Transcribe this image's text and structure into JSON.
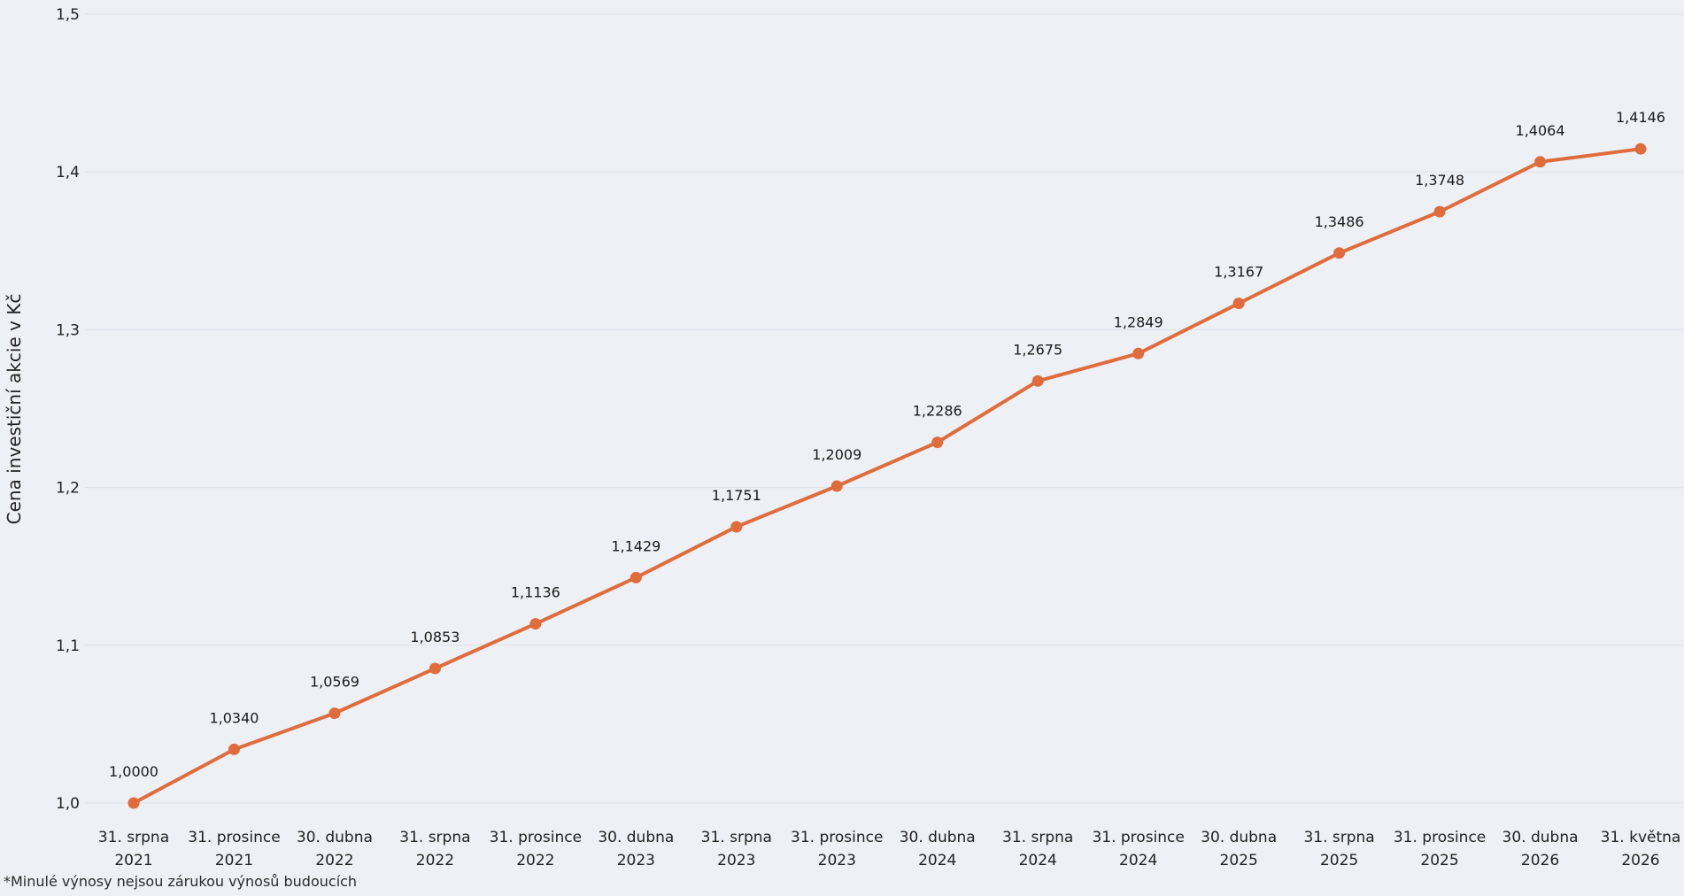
{
  "chart_data": {
    "type": "line",
    "title": "",
    "xlabel": "",
    "ylabel": "Cena investiční akcie v Kč",
    "ylim": [
      1.0,
      1.5
    ],
    "yticks": [
      "1,0",
      "1,1",
      "1,2",
      "1,3",
      "1,4",
      "1,5"
    ],
    "grid": true,
    "line_color": "#e06c3c",
    "grid_color": "#dfe3ea",
    "categories": [
      [
        "31. srpna",
        "2021"
      ],
      [
        "31. prosince",
        "2021"
      ],
      [
        "30. dubna",
        "2022"
      ],
      [
        "31. srpna",
        "2022"
      ],
      [
        "31. prosince",
        "2022"
      ],
      [
        "30. dubna",
        "2023"
      ],
      [
        "31. srpna",
        "2023"
      ],
      [
        "31. prosince",
        "2023"
      ],
      [
        "30. dubna",
        "2024"
      ],
      [
        "31. srpna",
        "2024"
      ],
      [
        "31. prosince",
        "2024"
      ],
      [
        "30. dubna",
        "2025"
      ],
      [
        "31. srpna",
        "2025"
      ],
      [
        "31. prosince",
        "2025"
      ],
      [
        "30. dubna",
        "2026"
      ],
      [
        "31. května",
        "2026"
      ]
    ],
    "values": [
      1.0,
      1.034,
      1.0569,
      1.0853,
      1.1136,
      1.1429,
      1.1751,
      1.2009,
      1.2286,
      1.2675,
      1.2849,
      1.3167,
      1.3486,
      1.3748,
      1.4064,
      1.4146
    ],
    "data_labels": [
      "1,0000",
      "1,0340",
      "1,0569",
      "1,0853",
      "1,1136",
      "1,1429",
      "1,1751",
      "1,2009",
      "1,2286",
      "1,2675",
      "1,2849",
      "1,3167",
      "1,3486",
      "1,3748",
      "1,4064",
      "1,4146"
    ]
  },
  "footnote": "*Minulé výnosy nejsou zárukou výnosů budoucích"
}
